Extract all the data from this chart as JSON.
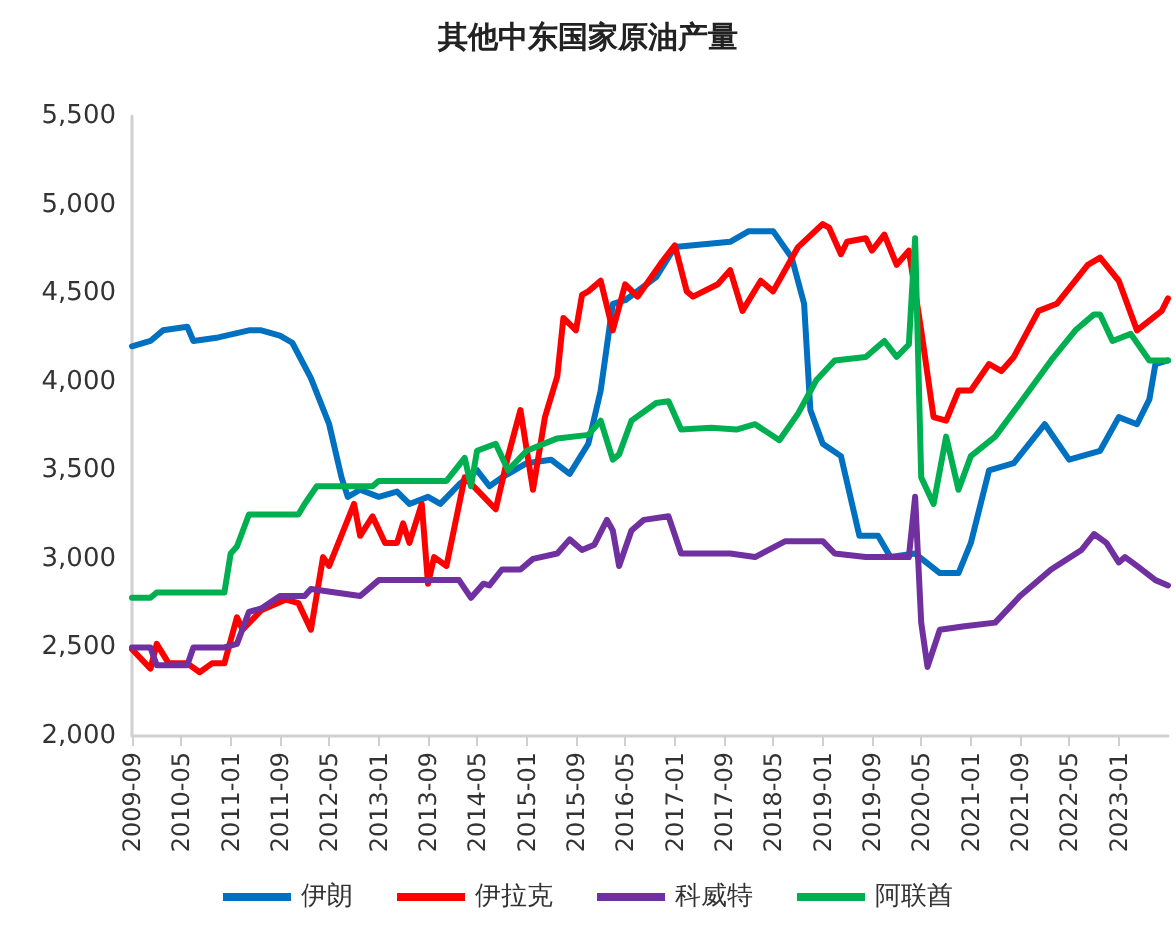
{
  "chart_data": {
    "type": "line",
    "title": "其他中东国家原油产量",
    "xlim": [
      "2009-09",
      "2023-09"
    ],
    "xticks": [
      "2009-09",
      "2010-05",
      "2011-01",
      "2011-09",
      "2012-05",
      "2013-01",
      "2013-09",
      "2014-05",
      "2015-01",
      "2015-09",
      "2016-05",
      "2017-01",
      "2017-09",
      "2018-05",
      "2019-01",
      "2019-09",
      "2020-05",
      "2021-01",
      "2021-09",
      "2022-05",
      "2023-01"
    ],
    "ylim": [
      2000,
      5500
    ],
    "yticks": [
      {
        "value": 2000,
        "label": "2,000"
      },
      {
        "value": 2500,
        "label": "2,500"
      },
      {
        "value": 3000,
        "label": "3,000"
      },
      {
        "value": 3500,
        "label": "3,500"
      },
      {
        "value": 4000,
        "label": "4,000"
      },
      {
        "value": 4500,
        "label": "4,500"
      },
      {
        "value": 5000,
        "label": "5,000"
      },
      {
        "value": 5500,
        "label": "5,500"
      }
    ],
    "grid": false,
    "legend": "bottom",
    "marker": "none",
    "line_style": "solid",
    "series": [
      {
        "name": "伊朗",
        "color": "#0070c0",
        "x": [
          "2009-09",
          "2009-12",
          "2010-02",
          "2010-06",
          "2010-07",
          "2010-11",
          "2011-04",
          "2011-06",
          "2011-09",
          "2011-11",
          "2012-02",
          "2012-05",
          "2012-07",
          "2012-08",
          "2012-10",
          "2013-01",
          "2013-04",
          "2013-06",
          "2013-09",
          "2013-11",
          "2014-02",
          "2014-05",
          "2014-07",
          "2014-09",
          "2015-01",
          "2015-05",
          "2015-08",
          "2015-11",
          "2016-01",
          "2016-03",
          "2016-05",
          "2016-10",
          "2017-01",
          "2017-10",
          "2018-01",
          "2018-05",
          "2018-08",
          "2018-10",
          "2018-11",
          "2019-01",
          "2019-04",
          "2019-07",
          "2019-10",
          "2019-12",
          "2020-04",
          "2020-08",
          "2020-11",
          "2021-01",
          "2021-04",
          "2021-08",
          "2022-01",
          "2022-05",
          "2022-10",
          "2023-01",
          "2023-04",
          "2023-06",
          "2023-07",
          "2023-09"
        ],
        "values": [
          4200,
          4230,
          4290,
          4310,
          4230,
          4250,
          4290,
          4290,
          4260,
          4220,
          4020,
          3760,
          3460,
          3350,
          3390,
          3350,
          3380,
          3310,
          3350,
          3310,
          3420,
          3500,
          3410,
          3460,
          3540,
          3560,
          3480,
          3650,
          3950,
          4440,
          4460,
          4590,
          4760,
          4790,
          4850,
          4850,
          4700,
          4440,
          3840,
          3650,
          3580,
          3130,
          3130,
          3010,
          3030,
          2920,
          2920,
          3090,
          3500,
          3540,
          3760,
          3560,
          3610,
          3800,
          3760,
          3900,
          4100,
          4120
        ]
      },
      {
        "name": "伊拉克",
        "color": "#ff0000",
        "x": [
          "2009-09",
          "2009-12",
          "2010-01",
          "2010-03",
          "2010-06",
          "2010-08",
          "2010-10",
          "2010-12",
          "2011-02",
          "2011-03",
          "2011-06",
          "2011-10",
          "2011-12",
          "2012-02",
          "2012-04",
          "2012-05",
          "2012-09",
          "2012-10",
          "2012-12",
          "2013-02",
          "2013-04",
          "2013-05",
          "2013-06",
          "2013-08",
          "2013-09",
          "2013-10",
          "2013-12",
          "2014-03",
          "2014-05",
          "2014-08",
          "2014-10",
          "2014-12",
          "2015-02",
          "2015-04",
          "2015-06",
          "2015-07",
          "2015-09",
          "2015-10",
          "2015-11",
          "2016-01",
          "2016-03",
          "2016-05",
          "2016-07",
          "2016-11",
          "2017-01",
          "2017-03",
          "2017-04",
          "2017-08",
          "2017-10",
          "2017-12",
          "2018-03",
          "2018-05",
          "2018-09",
          "2019-01",
          "2019-02",
          "2019-04",
          "2019-05",
          "2019-08",
          "2019-09",
          "2019-11",
          "2020-01",
          "2020-03",
          "2020-05",
          "2020-07",
          "2020-09",
          "2020-11",
          "2021-01",
          "2021-04",
          "2021-06",
          "2021-08",
          "2021-12",
          "2022-03",
          "2022-08",
          "2022-10",
          "2023-01",
          "2023-04",
          "2023-08",
          "2023-09"
        ],
        "values": [
          2490,
          2380,
          2520,
          2410,
          2410,
          2360,
          2410,
          2410,
          2670,
          2600,
          2710,
          2770,
          2750,
          2600,
          3010,
          2960,
          3310,
          3130,
          3240,
          3090,
          3090,
          3200,
          3090,
          3310,
          2860,
          3010,
          2960,
          3460,
          3390,
          3280,
          3580,
          3840,
          3390,
          3800,
          4030,
          4360,
          4290,
          4490,
          4510,
          4570,
          4290,
          4550,
          4480,
          4680,
          4770,
          4510,
          4480,
          4550,
          4630,
          4400,
          4570,
          4510,
          4760,
          4890,
          4870,
          4720,
          4790,
          4810,
          4740,
          4830,
          4660,
          4740,
          4290,
          3800,
          3780,
          3950,
          3950,
          4100,
          4060,
          4140,
          4400,
          4440,
          4660,
          4700,
          4570,
          4290,
          4400,
          4470
        ]
      },
      {
        "name": "科威特",
        "color": "#7030a0",
        "x": [
          "2009-09",
          "2009-12",
          "2010-01",
          "2010-06",
          "2010-07",
          "2010-12",
          "2011-02",
          "2011-04",
          "2011-06",
          "2011-09",
          "2012-01",
          "2012-02",
          "2012-06",
          "2012-10",
          "2013-01",
          "2014-02",
          "2014-04",
          "2014-06",
          "2014-07",
          "2014-09",
          "2014-12",
          "2015-02",
          "2015-06",
          "2015-08",
          "2015-10",
          "2015-12",
          "2016-02",
          "2016-03",
          "2016-04",
          "2016-06",
          "2016-08",
          "2016-12",
          "2017-02",
          "2017-10",
          "2018-02",
          "2018-07",
          "2019-01",
          "2019-03",
          "2019-08",
          "2020-03",
          "2020-04",
          "2020-05",
          "2020-06",
          "2020-08",
          "2020-12",
          "2021-05",
          "2021-09",
          "2022-02",
          "2022-07",
          "2022-09",
          "2022-11",
          "2023-01",
          "2023-02",
          "2023-04",
          "2023-07",
          "2023-09"
        ],
        "values": [
          2500,
          2500,
          2400,
          2400,
          2500,
          2500,
          2520,
          2700,
          2720,
          2790,
          2790,
          2830,
          2810,
          2790,
          2880,
          2880,
          2780,
          2860,
          2850,
          2940,
          2940,
          3000,
          3030,
          3110,
          3050,
          3080,
          3220,
          3160,
          2960,
          3160,
          3220,
          3240,
          3030,
          3030,
          3010,
          3100,
          3100,
          3030,
          3010,
          3010,
          3350,
          2640,
          2390,
          2600,
          2620,
          2640,
          2790,
          2940,
          3050,
          3140,
          3090,
          2980,
          3010,
          2960,
          2880,
          2850
        ]
      },
      {
        "name": "阿联酋",
        "color": "#00b050",
        "x": [
          "2009-09",
          "2009-12",
          "2010-01",
          "2010-12",
          "2011-01",
          "2011-02",
          "2011-04",
          "2011-12",
          "2012-01",
          "2012-03",
          "2012-12",
          "2013-01",
          "2013-12",
          "2014-03",
          "2014-04",
          "2014-05",
          "2014-08",
          "2014-10",
          "2015-01",
          "2015-06",
          "2015-11",
          "2016-01",
          "2016-03",
          "2016-04",
          "2016-06",
          "2016-10",
          "2016-12",
          "2017-02",
          "2017-07",
          "2017-11",
          "2018-02",
          "2018-06",
          "2018-09",
          "2018-12",
          "2019-03",
          "2019-08",
          "2019-11",
          "2020-01",
          "2020-03",
          "2020-04",
          "2020-05",
          "2020-07",
          "2020-09",
          "2020-11",
          "2021-01",
          "2021-05",
          "2021-09",
          "2022-02",
          "2022-06",
          "2022-09",
          "2022-10",
          "2022-12",
          "2023-03",
          "2023-06",
          "2023-09"
        ],
        "values": [
          2780,
          2780,
          2810,
          2810,
          3030,
          3070,
          3250,
          3250,
          3310,
          3410,
          3410,
          3440,
          3440,
          3570,
          3410,
          3610,
          3650,
          3500,
          3610,
          3680,
          3700,
          3780,
          3560,
          3590,
          3780,
          3880,
          3890,
          3730,
          3740,
          3730,
          3760,
          3670,
          3820,
          4010,
          4120,
          4140,
          4230,
          4140,
          4210,
          4810,
          3460,
          3310,
          3690,
          3390,
          3580,
          3690,
          3880,
          4120,
          4290,
          4380,
          4380,
          4230,
          4270,
          4120,
          4120
        ]
      }
    ]
  }
}
